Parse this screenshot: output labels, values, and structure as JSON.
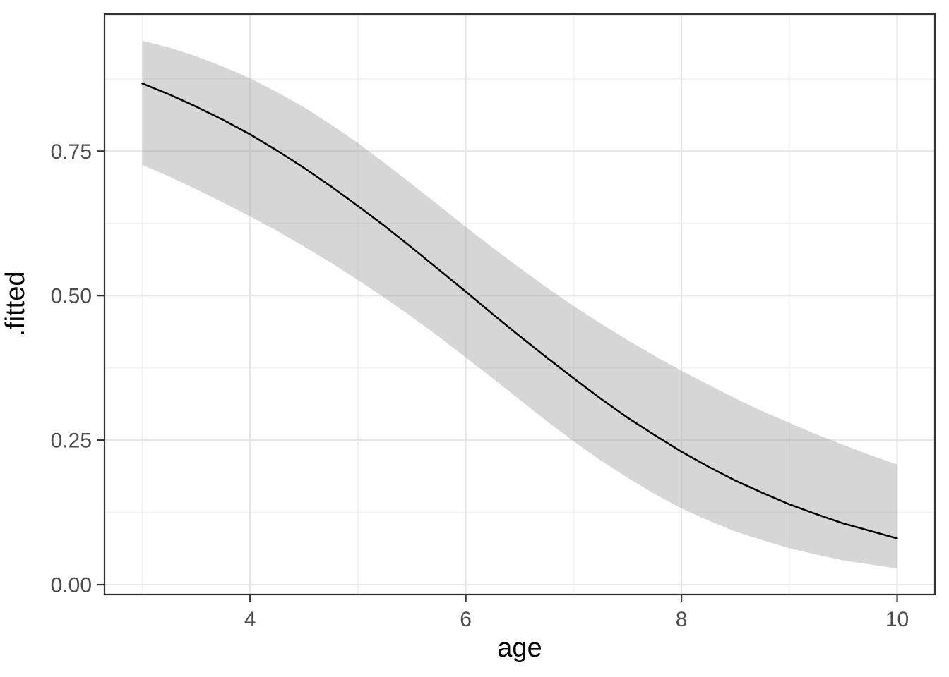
{
  "figure": {
    "background": "#ffffff"
  },
  "colors": {
    "line": "#000000",
    "ribbon_fill": "#999999",
    "ribbon_opacity": 0.4,
    "grid_major": "#e6e6e6",
    "grid_minor": "#f2f2f2",
    "panel_border": "#333333",
    "tick": "#333333",
    "tick_label": "#4d4d4d",
    "axis_title": "#000000",
    "panel_background": "#ffffff"
  },
  "chart_data": {
    "type": "line",
    "xlabel": "age",
    "ylabel": ".fitted",
    "xlim": [
      2.65,
      10.35
    ],
    "ylim": [
      -0.017,
      0.987
    ],
    "grid": true,
    "legend": "none",
    "x_ticks": [
      4,
      6,
      8,
      10
    ],
    "x_tick_labels": [
      "4",
      "6",
      "8",
      "10"
    ],
    "y_ticks": [
      0.0,
      0.25,
      0.5,
      0.75
    ],
    "y_tick_labels": [
      "0.00",
      "0.25",
      "0.50",
      "0.75"
    ],
    "x_minor_gridlines": [
      3,
      5,
      7,
      9
    ],
    "y_minor_gridlines": [
      0.125,
      0.375,
      0.625,
      0.875
    ],
    "x": [
      3.0,
      3.25,
      3.5,
      3.75,
      4.0,
      4.25,
      4.5,
      4.75,
      5.0,
      5.25,
      5.5,
      5.75,
      6.0,
      6.25,
      6.5,
      6.75,
      7.0,
      7.25,
      7.5,
      7.75,
      8.0,
      8.25,
      8.5,
      8.75,
      9.0,
      9.25,
      9.5,
      9.75,
      10.0
    ],
    "series": [
      {
        "name": ".fitted",
        "type": "line",
        "color": "#000000",
        "values": [
          0.867,
          0.848,
          0.827,
          0.804,
          0.779,
          0.751,
          0.721,
          0.689,
          0.655,
          0.62,
          0.583,
          0.545,
          0.507,
          0.468,
          0.43,
          0.393,
          0.357,
          0.322,
          0.289,
          0.259,
          0.23,
          0.204,
          0.18,
          0.159,
          0.139,
          0.122,
          0.106,
          0.093,
          0.08
        ]
      },
      {
        "name": "confidence-band",
        "type": "ribbon",
        "fill": "#999999",
        "opacity": 0.4,
        "upper": [
          0.941,
          0.929,
          0.914,
          0.896,
          0.876,
          0.852,
          0.826,
          0.796,
          0.764,
          0.729,
          0.693,
          0.656,
          0.619,
          0.583,
          0.548,
          0.514,
          0.482,
          0.452,
          0.423,
          0.396,
          0.37,
          0.346,
          0.322,
          0.3,
          0.28,
          0.26,
          0.242,
          0.224,
          0.208
        ],
        "lower": [
          0.726,
          0.706,
          0.684,
          0.661,
          0.637,
          0.612,
          0.585,
          0.557,
          0.527,
          0.496,
          0.463,
          0.429,
          0.393,
          0.357,
          0.32,
          0.283,
          0.248,
          0.215,
          0.185,
          0.157,
          0.132,
          0.111,
          0.092,
          0.077,
          0.063,
          0.052,
          0.042,
          0.035,
          0.028
        ]
      }
    ]
  }
}
